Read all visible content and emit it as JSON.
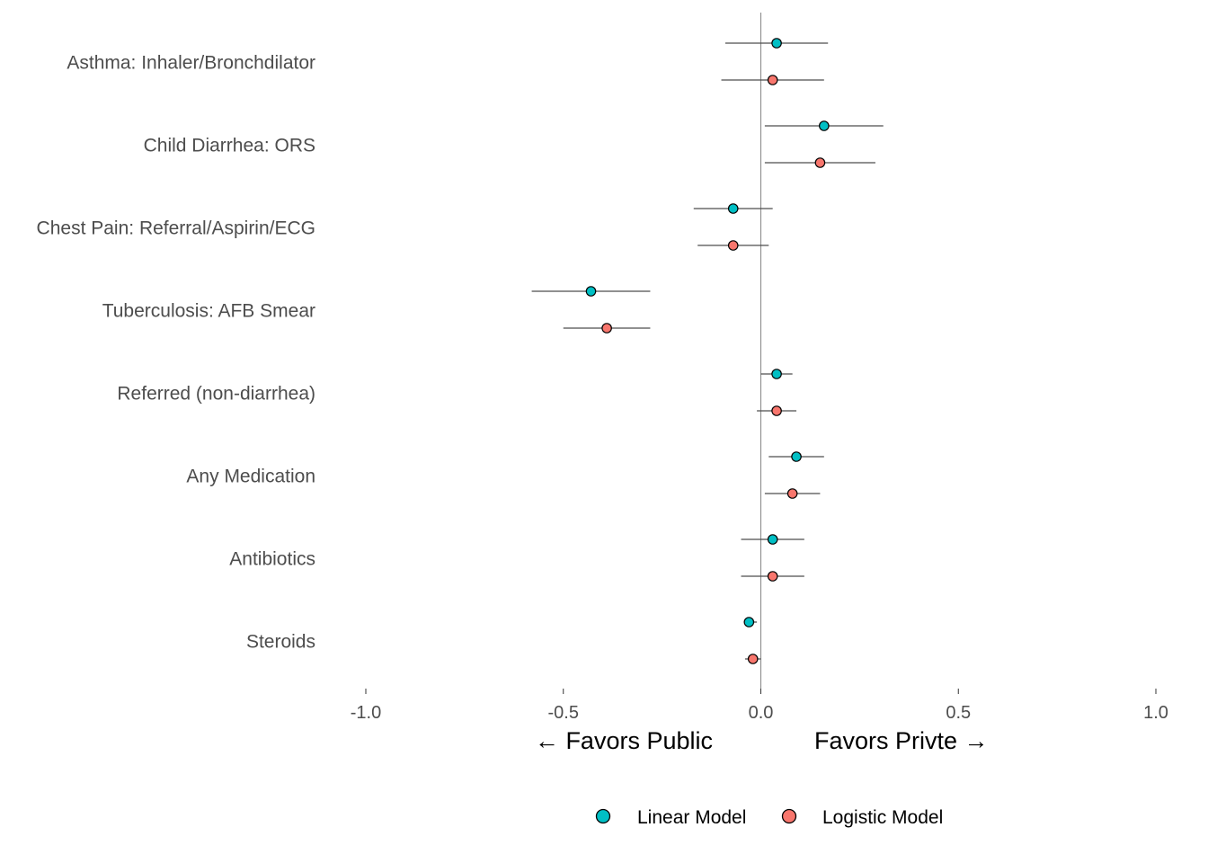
{
  "chart_data": {
    "type": "scatter",
    "subtype": "forest-plot-with-error-bars",
    "categories": [
      "Asthma: Inhaler/Bronchdilator",
      "Child Diarrhea: ORS",
      "Chest Pain: Referral/Aspirin/ECG",
      "Tuberculosis: AFB Smear",
      "Referred (non-diarrhea)",
      "Any Medication",
      "Antibiotics",
      "Steroids"
    ],
    "series": [
      {
        "name": "Linear Model",
        "color": "#00BFC4",
        "values": [
          0.04,
          0.16,
          -0.07,
          -0.43,
          0.04,
          0.09,
          0.03,
          -0.03
        ],
        "lower": [
          -0.09,
          0.01,
          -0.17,
          -0.58,
          0.0,
          0.02,
          -0.05,
          -0.04
        ],
        "upper": [
          0.17,
          0.31,
          0.03,
          -0.28,
          0.08,
          0.16,
          0.11,
          -0.01
        ]
      },
      {
        "name": "Logistic Model",
        "color": "#F8766D",
        "values": [
          0.03,
          0.15,
          -0.07,
          -0.39,
          0.04,
          0.08,
          0.03,
          -0.02
        ],
        "lower": [
          -0.1,
          0.01,
          -0.16,
          -0.5,
          -0.01,
          0.01,
          -0.05,
          -0.04
        ],
        "upper": [
          0.16,
          0.29,
          0.02,
          -0.28,
          0.09,
          0.15,
          0.11,
          0.0
        ]
      }
    ],
    "xlim": [
      -1.0,
      1.0
    ],
    "x_ticks": [
      -1.0,
      -0.5,
      0.0,
      0.5,
      1.0
    ],
    "x_tick_labels": [
      "-1.0",
      "-0.5",
      "0.0",
      "0.5",
      "1.0"
    ],
    "xlabel_left": "←  Favors Public",
    "xlabel_right": "Favors Privte  →",
    "reference_line": 0,
    "grid": false,
    "legend_position": "bottom",
    "errorbar_color": "#4d4d4d",
    "refline_color": "#8c8c8c"
  }
}
